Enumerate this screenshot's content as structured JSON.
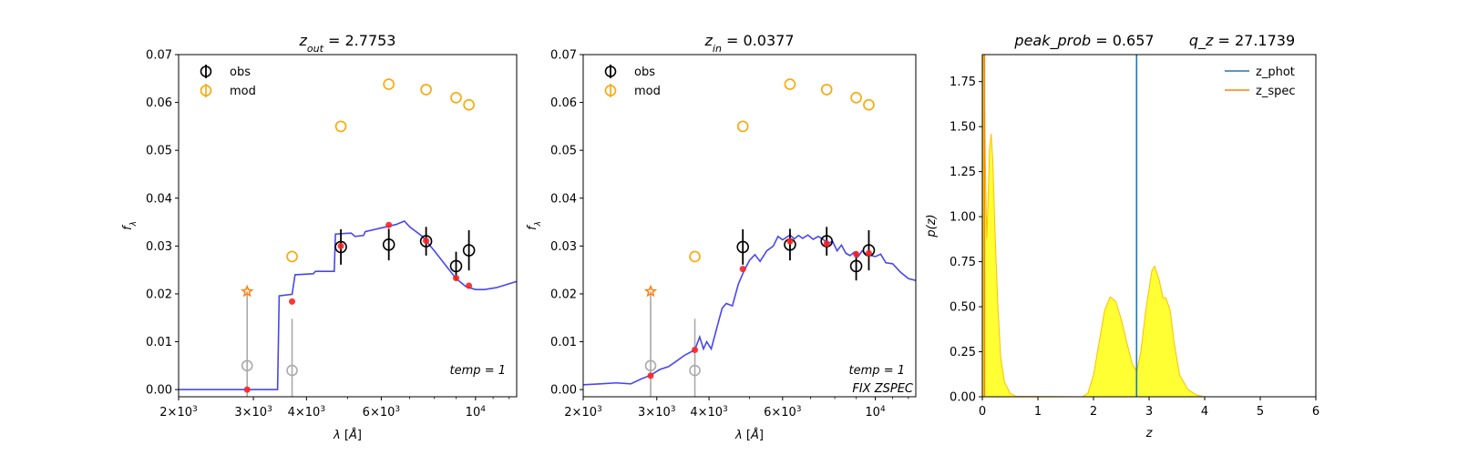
{
  "colors": {
    "obs": "#000000",
    "mod": "#ffa500",
    "model_flux": "#ff2020",
    "sed": "#3333ee",
    "upper_limit": "#aaaaaa",
    "z_phot": "#1f77b4",
    "z_spec": "#ff7f0e",
    "pz_fill": "#ffff33",
    "pz_edge": "#ffbf00"
  },
  "chart_data": [
    {
      "type": "scatter",
      "title_main": "z",
      "title_sub": "out",
      "title_value": "= 2.7753",
      "xlabel_main": "λ [",
      "xlabel_unit": "Å",
      "xlabel_end": "]",
      "ylabel_main": "f",
      "ylabel_sub": "λ",
      "x_scale": "log",
      "xlim": [
        2000,
        12500
      ],
      "ylim": [
        -0.0015,
        0.07
      ],
      "yticks": [
        "0.00",
        "0.01",
        "0.02",
        "0.03",
        "0.04",
        "0.05",
        "0.06",
        "0.07"
      ],
      "xticks": [
        {
          "value": 2000,
          "mant": "2",
          "exp": "3"
        },
        {
          "value": 3000,
          "mant": "3",
          "exp": "3"
        },
        {
          "value": 4000,
          "mant": "4",
          "exp": "3"
        },
        {
          "value": 6000,
          "mant": "6",
          "exp": "3"
        },
        {
          "value": 10000,
          "mant": "",
          "exp": "4"
        }
      ],
      "legend": {
        "obs": "obs",
        "mod": "mod"
      },
      "annotation": "temp = 1",
      "annotation2": "",
      "obs": [
        {
          "x": 4820,
          "y": 0.0298,
          "err": 0.0037
        },
        {
          "x": 6250,
          "y": 0.0303,
          "err": 0.0033
        },
        {
          "x": 7650,
          "y": 0.031,
          "err": 0.003
        },
        {
          "x": 9000,
          "y": 0.0258,
          "err": 0.003
        },
        {
          "x": 9650,
          "y": 0.0291,
          "err": 0.0042
        }
      ],
      "upper_limits": [
        {
          "x": 2900,
          "y": 0.005,
          "err": 0.0155,
          "star": 0.0205
        },
        {
          "x": 3700,
          "y": 0.004,
          "err": 0.0108
        }
      ],
      "mod": [
        {
          "x": 3700,
          "y": 0.0278
        },
        {
          "x": 4820,
          "y": 0.055
        },
        {
          "x": 6250,
          "y": 0.0638
        },
        {
          "x": 7650,
          "y": 0.0627
        },
        {
          "x": 9000,
          "y": 0.061
        },
        {
          "x": 9650,
          "y": 0.0595
        }
      ],
      "model_flux": [
        {
          "x": 2900,
          "y": 0.0
        },
        {
          "x": 3700,
          "y": 0.0184
        },
        {
          "x": 4820,
          "y": 0.03
        },
        {
          "x": 6250,
          "y": 0.0344
        },
        {
          "x": 7650,
          "y": 0.0311
        },
        {
          "x": 9000,
          "y": 0.0233
        },
        {
          "x": 9650,
          "y": 0.0217
        }
      ],
      "sed": [
        [
          2000,
          0
        ],
        [
          3420,
          0
        ],
        [
          3450,
          0.0196
        ],
        [
          3700,
          0.0199
        ],
        [
          3760,
          0.024
        ],
        [
          4150,
          0.0242
        ],
        [
          4200,
          0.0247
        ],
        [
          4650,
          0.0247
        ],
        [
          4680,
          0.0325
        ],
        [
          5100,
          0.0327
        ],
        [
          5200,
          0.032
        ],
        [
          5450,
          0.0322
        ],
        [
          5500,
          0.033
        ],
        [
          6150,
          0.034
        ],
        [
          6500,
          0.0345
        ],
        [
          6800,
          0.0352
        ],
        [
          7000,
          0.034
        ],
        [
          7500,
          0.032
        ],
        [
          8000,
          0.029
        ],
        [
          8500,
          0.026
        ],
        [
          9000,
          0.0232
        ],
        [
          9500,
          0.0215
        ],
        [
          10000,
          0.0209
        ],
        [
          10500,
          0.0209
        ],
        [
          11200,
          0.0213
        ],
        [
          12500,
          0.0226
        ]
      ]
    },
    {
      "type": "scatter",
      "title_main": "z",
      "title_sub": "in",
      "title_value": "= 0.0377",
      "xlabel_main": "λ [",
      "xlabel_unit": "Å",
      "xlabel_end": "]",
      "ylabel_main": "f",
      "ylabel_sub": "λ",
      "x_scale": "log",
      "xlim": [
        2000,
        12500
      ],
      "ylim": [
        -0.0015,
        0.07
      ],
      "yticks": [
        "0.00",
        "0.01",
        "0.02",
        "0.03",
        "0.04",
        "0.05",
        "0.06",
        "0.07"
      ],
      "xticks": [
        {
          "value": 2000,
          "mant": "2",
          "exp": "3"
        },
        {
          "value": 3000,
          "mant": "3",
          "exp": "3"
        },
        {
          "value": 4000,
          "mant": "4",
          "exp": "3"
        },
        {
          "value": 6000,
          "mant": "6",
          "exp": "3"
        },
        {
          "value": 10000,
          "mant": "",
          "exp": "4"
        }
      ],
      "legend": {
        "obs": "obs",
        "mod": "mod"
      },
      "annotation": "temp = 1",
      "annotation2": "FIX ZSPEC",
      "obs": [
        {
          "x": 4820,
          "y": 0.0298,
          "err": 0.0037
        },
        {
          "x": 6250,
          "y": 0.0303,
          "err": 0.0033
        },
        {
          "x": 7650,
          "y": 0.031,
          "err": 0.003
        },
        {
          "x": 9000,
          "y": 0.0258,
          "err": 0.003
        },
        {
          "x": 9650,
          "y": 0.0291,
          "err": 0.0042
        }
      ],
      "upper_limits": [
        {
          "x": 2900,
          "y": 0.005,
          "err": 0.0155,
          "star": 0.0205
        },
        {
          "x": 3700,
          "y": 0.004,
          "err": 0.0108
        }
      ],
      "mod": [
        {
          "x": 3700,
          "y": 0.0278
        },
        {
          "x": 4820,
          "y": 0.055
        },
        {
          "x": 6250,
          "y": 0.0638
        },
        {
          "x": 7650,
          "y": 0.0627
        },
        {
          "x": 9000,
          "y": 0.061
        },
        {
          "x": 9650,
          "y": 0.0595
        }
      ],
      "model_flux": [
        {
          "x": 2900,
          "y": 0.0029
        },
        {
          "x": 3700,
          "y": 0.0083
        },
        {
          "x": 4820,
          "y": 0.0252
        },
        {
          "x": 6250,
          "y": 0.031
        },
        {
          "x": 7650,
          "y": 0.0305
        },
        {
          "x": 9000,
          "y": 0.0283
        },
        {
          "x": 9650,
          "y": 0.0285
        }
      ],
      "sed": [
        [
          2000,
          0.001
        ],
        [
          2200,
          0.0012
        ],
        [
          2400,
          0.0014
        ],
        [
          2600,
          0.0012
        ],
        [
          2750,
          0.0022
        ],
        [
          2900,
          0.003
        ],
        [
          3050,
          0.0042
        ],
        [
          3200,
          0.0048
        ],
        [
          3350,
          0.006
        ],
        [
          3500,
          0.0072
        ],
        [
          3700,
          0.0083
        ],
        [
          3800,
          0.011
        ],
        [
          3880,
          0.0085
        ],
        [
          3950,
          0.01
        ],
        [
          4050,
          0.0085
        ],
        [
          4150,
          0.012
        ],
        [
          4300,
          0.017
        ],
        [
          4400,
          0.018
        ],
        [
          4550,
          0.0175
        ],
        [
          4700,
          0.022
        ],
        [
          4850,
          0.0248
        ],
        [
          5000,
          0.027
        ],
        [
          5150,
          0.0282
        ],
        [
          5300,
          0.0268
        ],
        [
          5500,
          0.029
        ],
        [
          5700,
          0.03
        ],
        [
          5850,
          0.032
        ],
        [
          6000,
          0.0313
        ],
        [
          6250,
          0.0323
        ],
        [
          6400,
          0.0315
        ],
        [
          6550,
          0.0322
        ],
        [
          6700,
          0.0316
        ],
        [
          6900,
          0.0323
        ],
        [
          7100,
          0.0314
        ],
        [
          7300,
          0.032
        ],
        [
          7500,
          0.0314
        ],
        [
          7700,
          0.0305
        ],
        [
          7900,
          0.031
        ],
        [
          8100,
          0.029
        ],
        [
          8300,
          0.0302
        ],
        [
          8500,
          0.0285
        ],
        [
          8700,
          0.028
        ],
        [
          8900,
          0.0287
        ],
        [
          9100,
          0.0278
        ],
        [
          9300,
          0.029
        ],
        [
          9500,
          0.0283
        ],
        [
          9800,
          0.028
        ],
        [
          10000,
          0.0278
        ],
        [
          10300,
          0.0283
        ],
        [
          10600,
          0.0265
        ],
        [
          11000,
          0.0263
        ],
        [
          11500,
          0.0245
        ],
        [
          12000,
          0.0232
        ],
        [
          12500,
          0.0228
        ]
      ]
    },
    {
      "type": "area",
      "title_left_main": "peak_prob",
      "title_left_value": "= 0.657",
      "title_right_main": "q_z",
      "title_right_value": "= 27.1739",
      "xlabel": "z",
      "ylabel": "p(z)",
      "xlim": [
        0,
        6
      ],
      "ylim": [
        0,
        1.9
      ],
      "xticks": [
        "0",
        "1",
        "2",
        "3",
        "4",
        "5",
        "6"
      ],
      "yticks": [
        "0.00",
        "0.25",
        "0.50",
        "0.75",
        "1.00",
        "1.25",
        "1.50",
        "1.75"
      ],
      "series": [
        {
          "name": "z_phot",
          "x": 2.7753
        },
        {
          "name": "z_spec",
          "x": 0.0377
        }
      ],
      "pz": [
        [
          0,
          0
        ],
        [
          0.01,
          1.9
        ],
        [
          0.03,
          1.9
        ],
        [
          0.06,
          1.2
        ],
        [
          0.08,
          0.88
        ],
        [
          0.1,
          1.05
        ],
        [
          0.13,
          1.38
        ],
        [
          0.16,
          1.46
        ],
        [
          0.19,
          1.3
        ],
        [
          0.23,
          0.9
        ],
        [
          0.28,
          0.5
        ],
        [
          0.33,
          0.22
        ],
        [
          0.4,
          0.08
        ],
        [
          0.5,
          0.02
        ],
        [
          0.6,
          0.003
        ],
        [
          1.8,
          0.0
        ],
        [
          1.9,
          0.02
        ],
        [
          2.0,
          0.12
        ],
        [
          2.1,
          0.3
        ],
        [
          2.2,
          0.48
        ],
        [
          2.3,
          0.555
        ],
        [
          2.4,
          0.53
        ],
        [
          2.5,
          0.43
        ],
        [
          2.6,
          0.3
        ],
        [
          2.7,
          0.18
        ],
        [
          2.78,
          0.14
        ],
        [
          2.85,
          0.25
        ],
        [
          2.95,
          0.5
        ],
        [
          3.05,
          0.7
        ],
        [
          3.1,
          0.725
        ],
        [
          3.18,
          0.65
        ],
        [
          3.25,
          0.55
        ],
        [
          3.3,
          0.55
        ],
        [
          3.38,
          0.48
        ],
        [
          3.45,
          0.3
        ],
        [
          3.55,
          0.12
        ],
        [
          3.7,
          0.04
        ],
        [
          3.85,
          0.01
        ],
        [
          4.0,
          0.0
        ],
        [
          5.0,
          0.0
        ]
      ]
    }
  ]
}
